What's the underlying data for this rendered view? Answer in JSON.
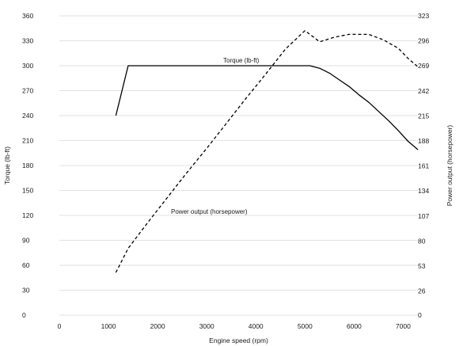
{
  "chart_data": {
    "type": "line",
    "xlabel": "Engine speed (rpm)",
    "ylabel": "Torque (lb-ft)",
    "y2label": "Power output (horsepower)",
    "xlim": [
      0,
      7300
    ],
    "ylim": [
      0,
      360
    ],
    "y2lim": [
      0,
      323
    ],
    "x_ticks": [
      0,
      1000,
      2000,
      3000,
      4000,
      5000,
      6000,
      7000
    ],
    "y_ticks": [
      0,
      30,
      60,
      90,
      120,
      150,
      180,
      210,
      240,
      270,
      300,
      330,
      360
    ],
    "y2_ticks": [
      0,
      26,
      53,
      80,
      107,
      134,
      161,
      188,
      215,
      242,
      269,
      296,
      323
    ],
    "grid": "horizontal",
    "series": [
      {
        "name": "Torque (lb-ft)",
        "axis": "left",
        "style": "solid",
        "color": "#000000",
        "x": [
          1150,
          1400,
          1800,
          2500,
          3000,
          3500,
          4000,
          4500,
          5000,
          5100,
          5300,
          5500,
          5700,
          5900,
          6100,
          6300,
          6500,
          6700,
          6900,
          7100,
          7300
        ],
        "y": [
          240,
          300,
          300,
          300,
          300,
          300,
          300,
          300,
          300,
          300,
          297,
          291,
          283,
          275,
          265,
          256,
          245,
          234,
          222,
          209,
          199
        ]
      },
      {
        "name": "Power output (horsepower)",
        "axis": "right",
        "style": "dashed",
        "color": "#000000",
        "x": [
          1150,
          1400,
          1800,
          2200,
          2600,
          3000,
          3400,
          3800,
          4200,
          4600,
          5000,
          5300,
          5600,
          5900,
          6300,
          6600,
          6900,
          7100,
          7300
        ],
        "y": [
          46,
          72,
          100,
          127,
          154,
          180,
          207,
          234,
          260,
          287,
          307,
          295,
          300,
          303,
          303,
          297,
          288,
          277,
          268
        ]
      }
    ]
  }
}
